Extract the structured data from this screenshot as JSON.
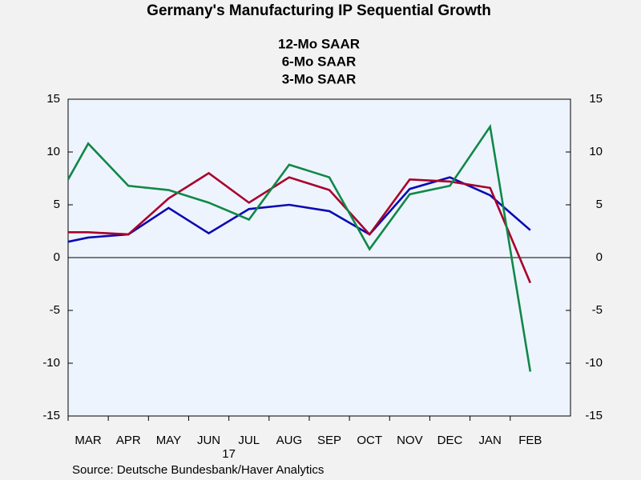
{
  "chart_data": {
    "type": "line",
    "title": "Germany's Manufacturing IP Sequential Growth",
    "categories": [
      null,
      "MAR",
      "APR",
      "MAY",
      "JUN",
      "JUL",
      "AUG",
      "SEP",
      "OCT",
      "NOV",
      "DEC",
      "JAN",
      "FEB"
    ],
    "year_label": "17",
    "series": [
      {
        "name": "12-Mo SAAR",
        "color": "#0a0ab4",
        "values": [
          1.5,
          1.9,
          2.2,
          4.7,
          2.3,
          4.6,
          5.0,
          4.4,
          2.2,
          6.5,
          7.6,
          5.9,
          2.6
        ]
      },
      {
        "name": "6-Mo SAAR",
        "color": "#a8002c",
        "values": [
          2.4,
          2.4,
          2.2,
          5.6,
          8.0,
          5.2,
          7.6,
          6.4,
          2.2,
          7.4,
          7.2,
          6.6,
          -2.4
        ]
      },
      {
        "name": "3-Mo SAAR",
        "color": "#108848",
        "values": [
          7.4,
          10.8,
          6.8,
          6.4,
          5.2,
          3.6,
          8.8,
          7.6,
          0.8,
          6.0,
          6.8,
          12.4,
          -10.8
        ]
      }
    ],
    "ylim": [
      -15,
      15
    ],
    "yticks": [
      -15,
      -10,
      -5,
      0,
      5,
      10,
      15
    ],
    "y2lim": [
      -15,
      15
    ],
    "y2ticks": [
      -15,
      -10,
      -5,
      0,
      5,
      10,
      15
    ],
    "source": "Source:  Deutsche Bundesbank/Haver Analytics"
  }
}
